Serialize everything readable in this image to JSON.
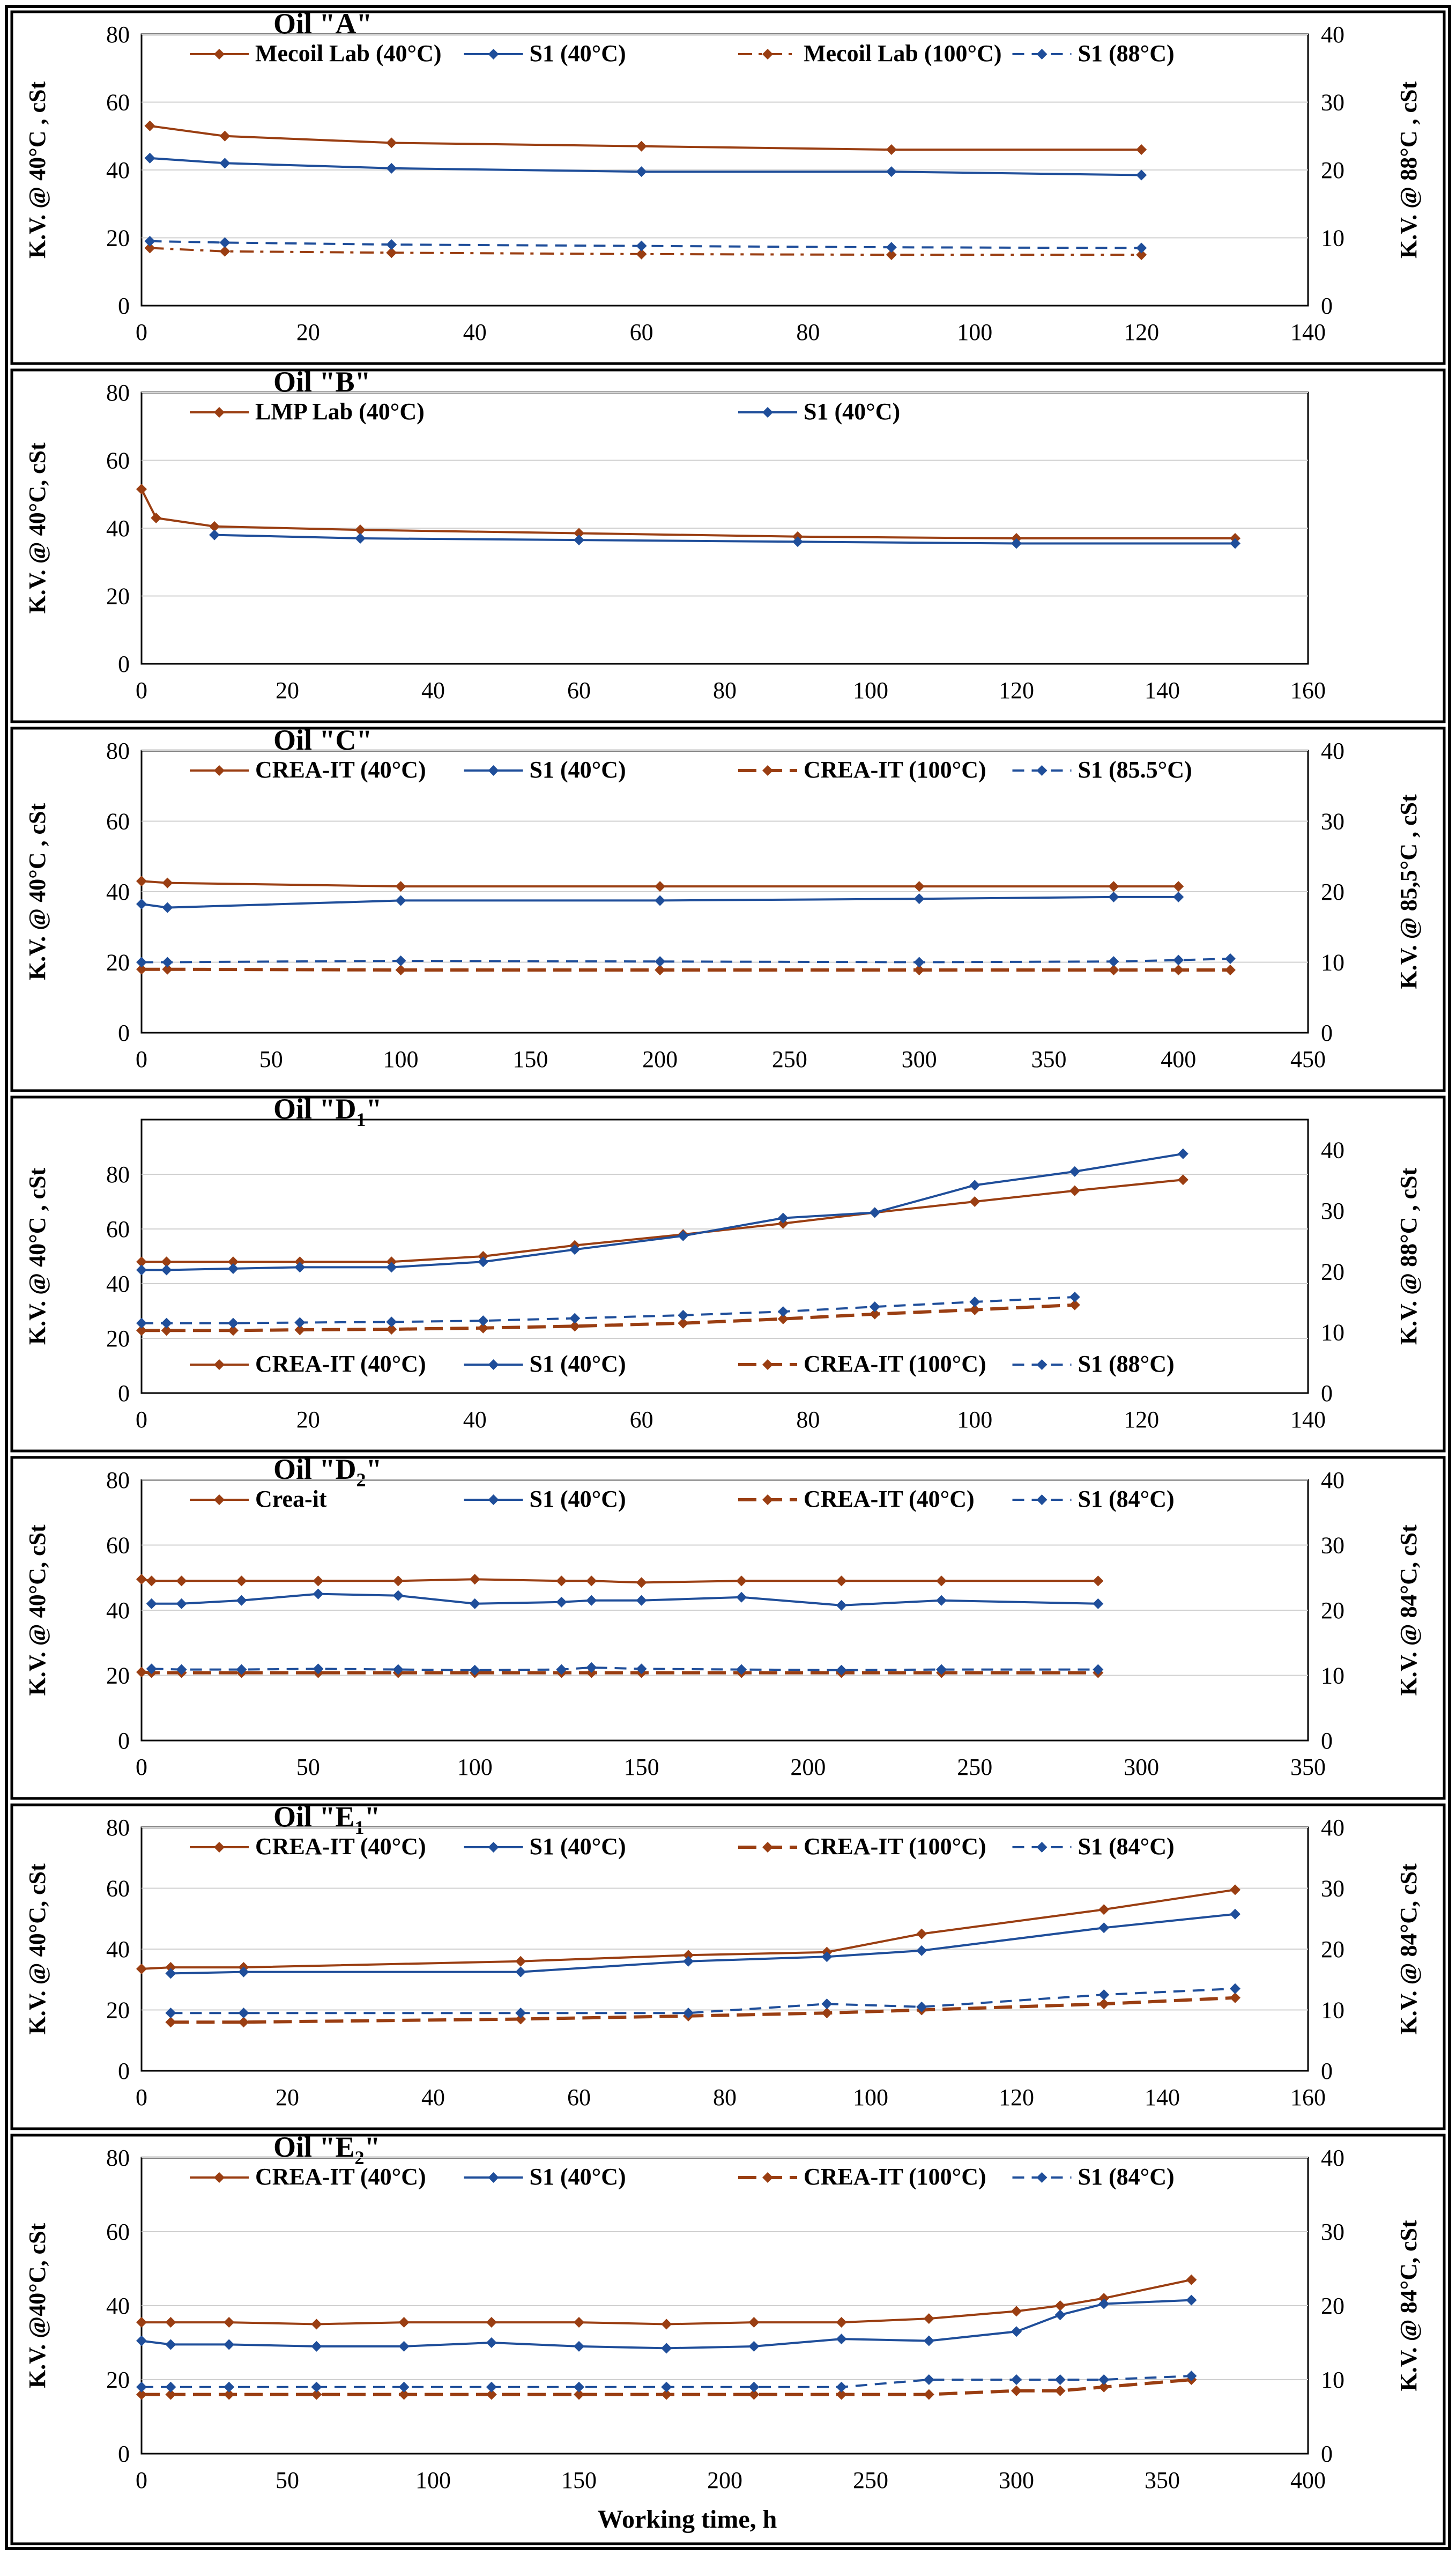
{
  "figure": {
    "xlabel": "Working time, h"
  },
  "colors": {
    "brown": "#9A3E12",
    "blue": "#1F4E9A",
    "gridline": "#D0D0D0",
    "frame": "#000000"
  },
  "chart_data": [
    {
      "type": "line",
      "title": "Oil \"A\"",
      "ylabel": "K.V. @ 40°C , cSt",
      "ylabel_right": "K.V. @ 88°C , cSt",
      "xlim": [
        0,
        140
      ],
      "xticks": [
        0,
        20,
        40,
        60,
        80,
        100,
        120,
        140
      ],
      "ylim": [
        0,
        80
      ],
      "yticks": [
        0,
        20,
        40,
        60,
        80
      ],
      "ylim_right": [
        0,
        40
      ],
      "yticks_right": [
        0,
        10,
        20,
        30,
        40
      ],
      "legend_position": "top",
      "series": [
        {
          "name": "Mecoil Lab (40°C)",
          "color": "brown",
          "dash": "solid",
          "axis": "left",
          "x": [
            1,
            10,
            30,
            60,
            90,
            120
          ],
          "y": [
            53,
            50,
            48,
            47,
            46,
            46
          ]
        },
        {
          "name": "S1  (40°C)",
          "color": "blue",
          "dash": "solid",
          "axis": "left",
          "x": [
            1,
            10,
            30,
            60,
            90,
            120
          ],
          "y": [
            43.5,
            42,
            40.5,
            39.5,
            39.5,
            38.5
          ]
        },
        {
          "name": "Mecoil Lab (100°C)",
          "color": "brown",
          "dash": "dashdot",
          "axis": "right",
          "x": [
            1,
            10,
            30,
            60,
            90,
            120
          ],
          "y": [
            8.5,
            8,
            7.8,
            7.6,
            7.5,
            7.5
          ]
        },
        {
          "name": "S1 (88°C)",
          "color": "blue",
          "dash": "dash",
          "axis": "right",
          "x": [
            1,
            10,
            30,
            60,
            90,
            120
          ],
          "y": [
            9.5,
            9.3,
            9,
            8.8,
            8.6,
            8.5
          ]
        }
      ]
    },
    {
      "type": "line",
      "title": "Oil \"B\"",
      "ylabel": "K.V. @ 40°C, cSt",
      "xlim": [
        0,
        160
      ],
      "xticks": [
        0,
        20,
        40,
        60,
        80,
        100,
        120,
        140,
        160
      ],
      "ylim": [
        0,
        80
      ],
      "yticks": [
        0,
        20,
        40,
        60,
        80
      ],
      "legend_position": "top",
      "series": [
        {
          "name": "LMP Lab  (40°C)",
          "color": "brown",
          "dash": "solid",
          "axis": "left",
          "x": [
            0,
            2,
            10,
            30,
            60,
            90,
            120,
            150
          ],
          "y": [
            51.5,
            43,
            40.5,
            39.5,
            38.5,
            37.5,
            37,
            37
          ]
        },
        {
          "name": "S1  (40°C)",
          "color": "blue",
          "dash": "solid",
          "axis": "left",
          "x": [
            10,
            30,
            60,
            90,
            120,
            150
          ],
          "y": [
            38,
            37,
            36.5,
            36,
            35.5,
            35.5
          ]
        }
      ]
    },
    {
      "type": "line",
      "title": "Oil \"C\"",
      "ylabel": "K.V. @ 40°C , cSt",
      "ylabel_right": "K.V. @ 85,5°C , cSt",
      "xlim": [
        0,
        450
      ],
      "xticks": [
        0,
        50,
        100,
        150,
        200,
        250,
        300,
        350,
        400,
        450
      ],
      "ylim": [
        0,
        80
      ],
      "yticks": [
        0,
        20,
        40,
        60,
        80
      ],
      "ylim_right": [
        0,
        40
      ],
      "yticks_right": [
        0,
        10,
        20,
        30,
        40
      ],
      "legend_position": "top",
      "series": [
        {
          "name": "CREA-IT (40°C)",
          "color": "brown",
          "dash": "solid",
          "axis": "left",
          "x": [
            0,
            10,
            100,
            200,
            300,
            375,
            400
          ],
          "y": [
            43,
            42.5,
            41.5,
            41.5,
            41.5,
            41.5,
            41.5
          ]
        },
        {
          "name": "S1  (40°C)",
          "color": "blue",
          "dash": "solid",
          "axis": "left",
          "x": [
            0,
            10,
            100,
            200,
            300,
            375,
            400
          ],
          "y": [
            36.5,
            35.5,
            37.5,
            37.5,
            38,
            38.5,
            38.5
          ]
        },
        {
          "name": "CREA-IT (100°C)",
          "color": "brown",
          "dash": "longdash",
          "axis": "right",
          "x": [
            0,
            10,
            100,
            200,
            300,
            375,
            400,
            420
          ],
          "y": [
            9,
            9,
            8.9,
            8.9,
            8.9,
            8.9,
            8.9,
            8.9
          ]
        },
        {
          "name": "S1 (85.5°C)",
          "color": "blue",
          "dash": "dash",
          "axis": "right",
          "x": [
            0,
            10,
            100,
            200,
            300,
            375,
            400,
            420
          ],
          "y": [
            10,
            10,
            10.2,
            10.1,
            10,
            10.1,
            10.3,
            10.5
          ]
        }
      ]
    },
    {
      "type": "line",
      "title": "Oil \"D",
      "title_subscript": "1",
      "title_suffix": "\"",
      "ylabel": "K.V. @ 40°C , cSt",
      "ylabel_right": "K.V. @ 88°C , cSt",
      "xlim": [
        0,
        140
      ],
      "xticks": [
        0,
        20,
        40,
        60,
        80,
        100,
        120,
        140
      ],
      "ylim": [
        0,
        100
      ],
      "yticks": [
        0,
        20,
        40,
        60,
        80
      ],
      "ylim_right": [
        0,
        45
      ],
      "yticks_right": [
        0,
        10,
        20,
        30,
        40
      ],
      "legend_position": "bottom",
      "series": [
        {
          "name": "CREA-IT (40°C)",
          "color": "brown",
          "dash": "solid",
          "axis": "left",
          "x": [
            0,
            3,
            11,
            19,
            30,
            41,
            52,
            65,
            77,
            88,
            100,
            112,
            125
          ],
          "y": [
            48,
            48,
            48,
            48,
            48,
            50,
            54,
            58,
            62,
            66,
            70,
            74,
            78
          ]
        },
        {
          "name": "S1  (40°C)",
          "color": "blue",
          "dash": "solid",
          "axis": "left",
          "x": [
            0,
            3,
            11,
            19,
            30,
            41,
            52,
            65,
            77,
            88,
            100,
            112,
            125
          ],
          "y": [
            45,
            45,
            45.5,
            46,
            46,
            48,
            52.5,
            57.5,
            64,
            66,
            76,
            81,
            87.5
          ]
        },
        {
          "name": "CREA-IT (100°C)",
          "color": "brown",
          "dash": "longdash",
          "axis": "right",
          "x": [
            0,
            3,
            11,
            19,
            30,
            41,
            52,
            65,
            77,
            88,
            100,
            112
          ],
          "y": [
            10.3,
            10.3,
            10.3,
            10.4,
            10.5,
            10.7,
            11,
            11.5,
            12.2,
            13,
            13.7,
            14.5
          ]
        },
        {
          "name": "S1 (88°C)",
          "color": "blue",
          "dash": "dash",
          "axis": "right",
          "x": [
            0,
            3,
            11,
            19,
            30,
            41,
            52,
            65,
            77,
            88,
            100,
            112
          ],
          "y": [
            11.5,
            11.5,
            11.5,
            11.6,
            11.7,
            11.9,
            12.3,
            12.8,
            13.4,
            14.2,
            15,
            15.8
          ]
        }
      ]
    },
    {
      "type": "line",
      "title": "Oil \"D",
      "title_subscript": "2",
      "title_suffix": "\"",
      "ylabel": "K.V. @ 40°C, cSt",
      "ylabel_right": "K.V. @ 84°C, cSt",
      "xlim": [
        0,
        350
      ],
      "xticks": [
        0,
        50,
        100,
        150,
        200,
        250,
        300,
        350
      ],
      "ylim": [
        0,
        80
      ],
      "yticks": [
        0,
        20,
        40,
        60,
        80
      ],
      "ylim_right": [
        0,
        40
      ],
      "yticks_right": [
        0,
        10,
        20,
        30,
        40
      ],
      "legend_position": "top",
      "series": [
        {
          "name": "Crea-it",
          "color": "brown",
          "dash": "solid",
          "axis": "left",
          "x": [
            0,
            3,
            12,
            30,
            53,
            77,
            100,
            126,
            135,
            150,
            180,
            210,
            240,
            287
          ],
          "y": [
            49.5,
            49,
            49,
            49,
            49,
            49,
            49.5,
            49,
            49,
            48.5,
            49,
            49,
            49,
            49
          ]
        },
        {
          "name": "S1  (40°C)",
          "color": "blue",
          "dash": "solid",
          "axis": "left",
          "x": [
            3,
            12,
            30,
            53,
            77,
            100,
            126,
            135,
            150,
            180,
            210,
            240,
            287
          ],
          "y": [
            42,
            42,
            43,
            45,
            44.5,
            42,
            42.5,
            43,
            43,
            44,
            41.5,
            43,
            42
          ]
        },
        {
          "name": "CREA-IT (40°C)",
          "color": "brown",
          "dash": "longdash",
          "axis": "right",
          "x": [
            0,
            3,
            12,
            30,
            53,
            77,
            100,
            126,
            135,
            150,
            180,
            210,
            240,
            287
          ],
          "y": [
            10.5,
            10.4,
            10.4,
            10.4,
            10.4,
            10.4,
            10.4,
            10.4,
            10.4,
            10.4,
            10.4,
            10.4,
            10.4,
            10.4
          ]
        },
        {
          "name": "S1 (84°C)",
          "color": "blue",
          "dash": "dash",
          "axis": "right",
          "x": [
            3,
            12,
            30,
            53,
            77,
            100,
            126,
            135,
            150,
            180,
            210,
            240,
            287
          ],
          "y": [
            11,
            10.9,
            10.9,
            11,
            10.9,
            10.8,
            10.9,
            11.2,
            11,
            10.9,
            10.8,
            10.9,
            10.9
          ]
        }
      ]
    },
    {
      "type": "line",
      "title": "Oil \"E",
      "title_subscript": "1",
      "title_suffix": "\"",
      "ylabel": "K.V. @ 40°C, cSt",
      "ylabel_right": "K.V. @ 84°C, cSt",
      "xlim": [
        0,
        160
      ],
      "xticks": [
        0,
        20,
        40,
        60,
        80,
        100,
        120,
        140,
        160
      ],
      "ylim": [
        0,
        80
      ],
      "yticks": [
        0,
        20,
        40,
        60,
        80
      ],
      "ylim_right": [
        0,
        40
      ],
      "yticks_right": [
        0,
        10,
        20,
        30,
        40
      ],
      "legend_position": "top",
      "series": [
        {
          "name": "CREA-IT (40°C)",
          "color": "brown",
          "dash": "solid",
          "axis": "left",
          "x": [
            0,
            4,
            14,
            52,
            75,
            94,
            107,
            132,
            150
          ],
          "y": [
            33.5,
            34,
            34,
            36,
            38,
            39,
            45,
            53,
            59.5
          ]
        },
        {
          "name": "S1  (40°C)",
          "color": "blue",
          "dash": "solid",
          "axis": "left",
          "x": [
            4,
            14,
            52,
            75,
            94,
            107,
            132,
            150
          ],
          "y": [
            32,
            32.5,
            32.5,
            36,
            37.5,
            39.5,
            47,
            51.5
          ]
        },
        {
          "name": "CREA-IT (100°C)",
          "color": "brown",
          "dash": "longdash",
          "axis": "right",
          "x": [
            4,
            14,
            52,
            75,
            94,
            107,
            132,
            150
          ],
          "y": [
            8,
            8,
            8.5,
            9,
            9.5,
            10,
            11,
            12
          ]
        },
        {
          "name": "S1 (84°C)",
          "color": "blue",
          "dash": "dash",
          "axis": "right",
          "x": [
            4,
            14,
            52,
            75,
            94,
            107,
            132,
            150
          ],
          "y": [
            9.5,
            9.5,
            9.5,
            9.5,
            11,
            10.5,
            12.5,
            13.5
          ]
        }
      ]
    },
    {
      "type": "line",
      "title": "Oil \"E",
      "title_subscript": "2",
      "title_suffix": "\"",
      "ylabel": "K.V. @40°C, cSt",
      "ylabel_right": "K.V. @ 84°C, cSt",
      "xlabel": "Working time, h",
      "xlim": [
        0,
        400
      ],
      "xticks": [
        0,
        50,
        100,
        150,
        200,
        250,
        300,
        350,
        400
      ],
      "ylim": [
        0,
        80
      ],
      "yticks": [
        0,
        20,
        40,
        60,
        80
      ],
      "ylim_right": [
        0,
        40
      ],
      "yticks_right": [
        0,
        10,
        20,
        30,
        40
      ],
      "legend_position": "top",
      "series": [
        {
          "name": "CREA-IT (40°C)",
          "color": "brown",
          "dash": "solid",
          "axis": "left",
          "x": [
            0,
            10,
            30,
            60,
            90,
            120,
            150,
            180,
            210,
            240,
            270,
            300,
            315,
            330,
            360
          ],
          "y": [
            35.5,
            35.5,
            35.5,
            35,
            35.5,
            35.5,
            35.5,
            35,
            35.5,
            35.5,
            36.5,
            38.5,
            40,
            42,
            47
          ]
        },
        {
          "name": "S1  (40°C)",
          "color": "blue",
          "dash": "solid",
          "axis": "left",
          "x": [
            0,
            10,
            30,
            60,
            90,
            120,
            150,
            180,
            210,
            240,
            270,
            300,
            315,
            330,
            360
          ],
          "y": [
            30.5,
            29.5,
            29.5,
            29,
            29,
            30,
            29,
            28.5,
            29,
            31,
            30.5,
            33,
            37.5,
            40.5,
            41.5
          ]
        },
        {
          "name": "CREA-IT (100°C)",
          "color": "brown",
          "dash": "longdash",
          "axis": "right",
          "x": [
            0,
            10,
            30,
            60,
            90,
            120,
            150,
            180,
            210,
            240,
            270,
            300,
            315,
            330,
            360
          ],
          "y": [
            8,
            8,
            8,
            8,
            8,
            8,
            8,
            8,
            8,
            8,
            8,
            8.5,
            8.5,
            9,
            10
          ]
        },
        {
          "name": "S1 (84°C)",
          "color": "blue",
          "dash": "dash",
          "axis": "right",
          "x": [
            0,
            10,
            30,
            60,
            90,
            120,
            150,
            180,
            210,
            240,
            270,
            300,
            315,
            330,
            360
          ],
          "y": [
            9,
            9,
            9,
            9,
            9,
            9,
            9,
            9,
            9,
            9,
            10,
            10,
            10,
            10,
            10.5
          ]
        }
      ]
    }
  ]
}
